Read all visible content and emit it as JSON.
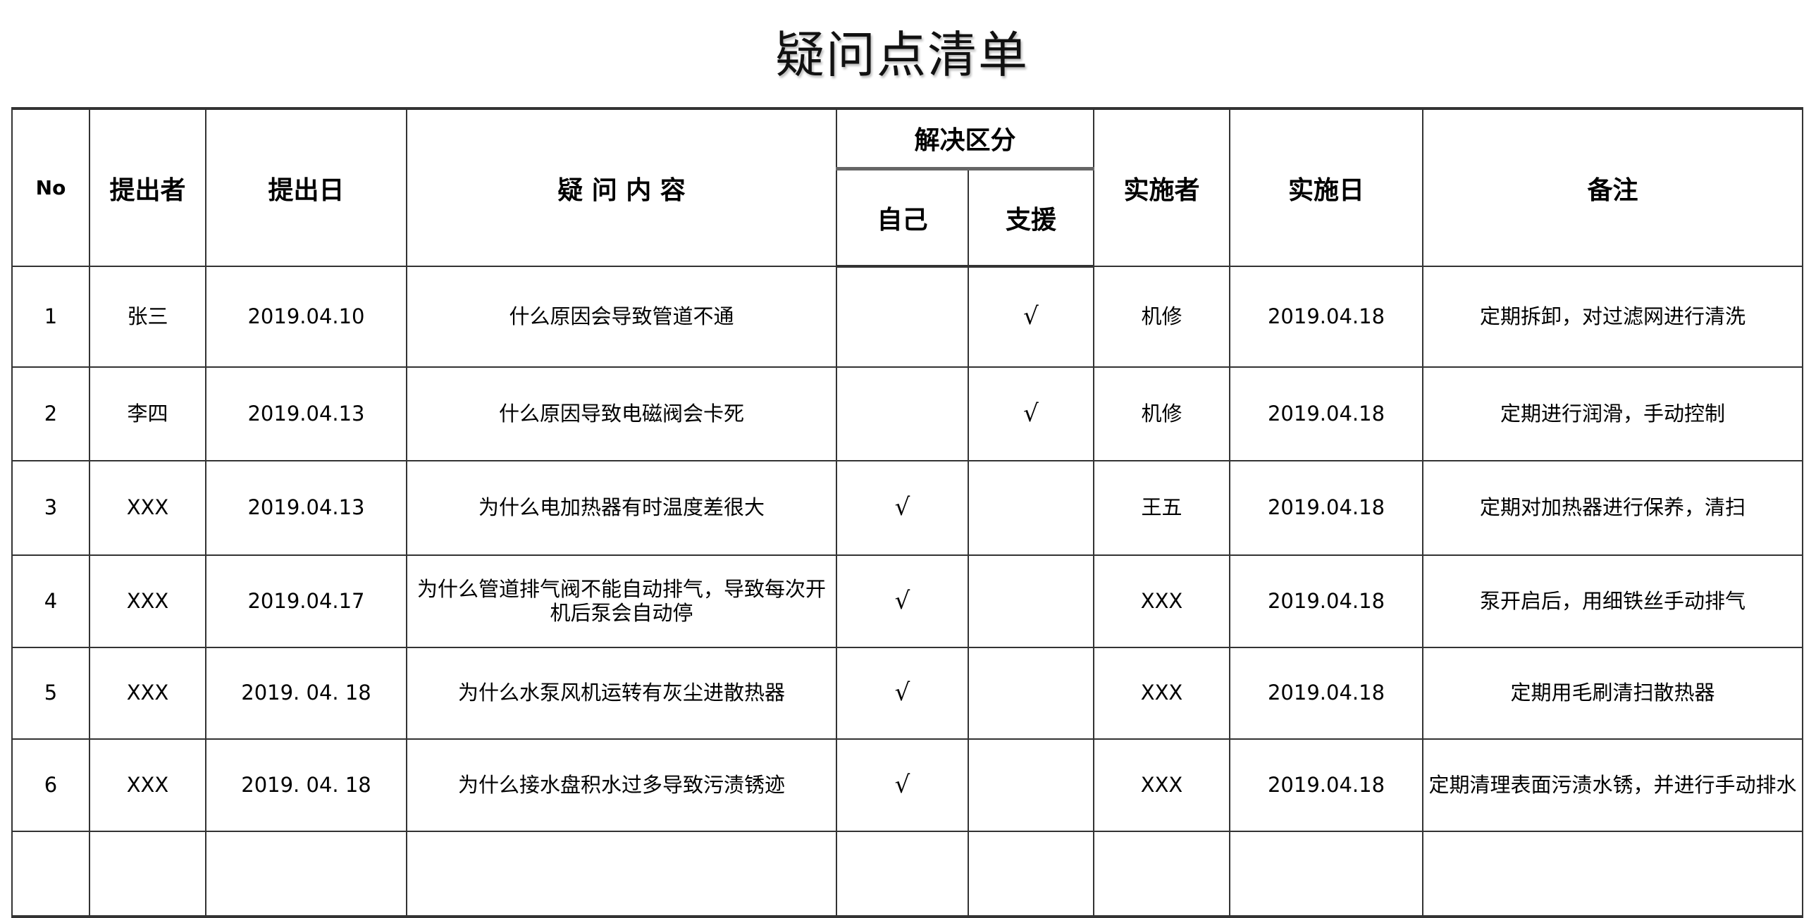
{
  "title": "疑问点清单",
  "headers": {
    "no": "No",
    "proposer": "提出者",
    "propose_date": "提出日",
    "question": "疑 问 内 容",
    "resolution_group": "解决区分",
    "self": "自己",
    "support": "支援",
    "implementer": "实施者",
    "implement_date": "实施日",
    "remarks": "备注"
  },
  "rows": [
    {
      "no": "1",
      "proposer": "张三",
      "propose_date": "2019.04.10",
      "question": "什么原因会导致管道不通",
      "self": "",
      "support": "√",
      "implementer": "机修",
      "implement_date": "2019.04.18",
      "remarks": "定期拆卸，对过滤网进行清洗"
    },
    {
      "no": "2",
      "proposer": "李四",
      "propose_date": "2019.04.13",
      "question": "什么原因导致电磁阀会卡死",
      "self": "",
      "support": "√",
      "implementer": "机修",
      "implement_date": "2019.04.18",
      "remarks": "定期进行润滑，手动控制"
    },
    {
      "no": "3",
      "proposer": "XXX",
      "propose_date": "2019.04.13",
      "question": "为什么电加热器有时温度差很大",
      "self": "√",
      "support": "",
      "implementer": "王五",
      "implement_date": "2019.04.18",
      "remarks": "定期对加热器进行保养，清扫"
    },
    {
      "no": "4",
      "proposer": "XXX",
      "propose_date": "2019.04.17",
      "question": "为什么管道排气阀不能自动排气，导致每次开机后泵会自动停",
      "self": "√",
      "support": "",
      "implementer": "XXX",
      "implement_date": "2019.04.18",
      "remarks": "泵开启后，用细铁丝手动排气"
    },
    {
      "no": "5",
      "proposer": "XXX",
      "propose_date": "2019. 04. 18",
      "question": "为什么水泵风机运转有灰尘进散热器",
      "self": "√",
      "support": "",
      "implementer": "XXX",
      "implement_date": "2019.04.18",
      "remarks": "定期用毛刷清扫散热器"
    },
    {
      "no": "6",
      "proposer": "XXX",
      "propose_date": "2019. 04. 18",
      "question": "为什么接水盘积水过多导致污渍锈迹",
      "self": "√",
      "support": "",
      "implementer": "XXX",
      "implement_date": "2019.04.18",
      "remarks": "定期清理表面污渍水锈，并进行手动排水"
    },
    {
      "no": "",
      "proposer": "",
      "propose_date": "",
      "question": "",
      "self": "",
      "support": "",
      "implementer": "",
      "implement_date": "",
      "remarks": ""
    }
  ]
}
